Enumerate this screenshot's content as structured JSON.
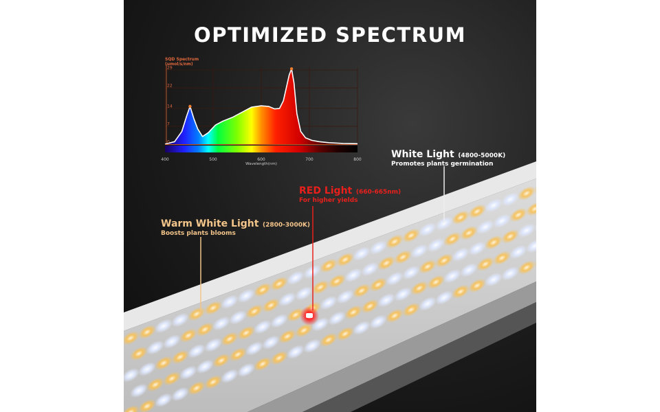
{
  "title": "OPTIMIZED SPECTRUM",
  "colors": {
    "white_light": "#ffffff",
    "red_light": "#e8201c",
    "warm_light": "#f3c58a",
    "axis": "#e0683c"
  },
  "callouts": {
    "white": {
      "label": "White Light",
      "range": "(4800-5000K)",
      "desc": "Promotes plants germination"
    },
    "red": {
      "label": "RED Light",
      "range": "(660-665nm)",
      "desc": "For higher yields"
    },
    "warm": {
      "label": "Warm White Light",
      "range": "(2800-3000K)",
      "desc": "Boosts plants blooms"
    }
  },
  "chart_data": {
    "type": "area",
    "title": "SQD Spectrum",
    "ylabel": "(umol/s/nm)",
    "xlabel": "Wavelength(nm)",
    "xlim": [
      400,
      800
    ],
    "ylim": [
      0,
      29
    ],
    "xticks": [
      400,
      500,
      600,
      700,
      800
    ],
    "yticks": [
      0,
      7,
      14,
      22,
      29
    ],
    "grid": true,
    "fill": "visible-spectrum gradient",
    "x": [
      400,
      420,
      435,
      445,
      452,
      460,
      468,
      478,
      490,
      505,
      520,
      540,
      560,
      580,
      600,
      615,
      628,
      638,
      646,
      652,
      658,
      663,
      668,
      674,
      682,
      692,
      705,
      720,
      740,
      770,
      800
    ],
    "y": [
      0,
      1,
      5,
      11,
      14.8,
      10,
      6,
      3,
      4.5,
      7.5,
      9,
      10.5,
      12.5,
      14.5,
      15,
      14.8,
      13.8,
      14,
      17,
      22,
      27,
      29.5,
      24,
      12,
      5,
      2.5,
      1.5,
      1,
      0.6,
      0.3,
      0.2
    ],
    "peak_markers": [
      452,
      663
    ]
  }
}
